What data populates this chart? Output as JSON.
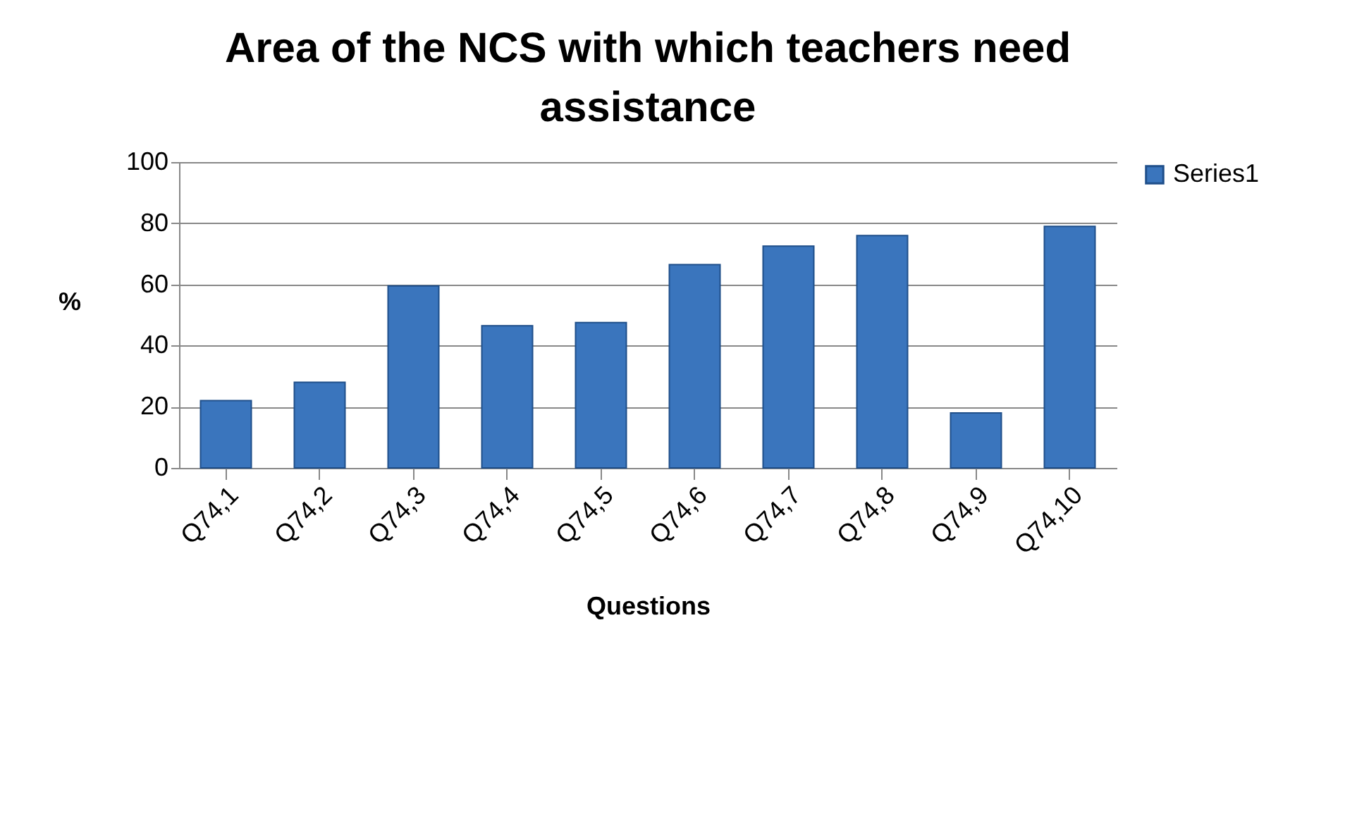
{
  "chart_data": {
    "type": "bar",
    "title": "Area of the NCS with which teachers need assistance",
    "xlabel": "Questions",
    "ylabel": "%",
    "categories": [
      "Q74,1",
      "Q74,2",
      "Q74,3",
      "Q74,4",
      "Q74,5",
      "Q74,6",
      "Q74,7",
      "Q74,8",
      "Q74,9",
      "Q74,10"
    ],
    "series": [
      {
        "name": "Series1",
        "color": "#3a75bd",
        "values": [
          22,
          28,
          59.5,
          46.5,
          47.5,
          66.5,
          72.5,
          76,
          18,
          79
        ]
      }
    ],
    "ylim": [
      0,
      100
    ],
    "yticks": [
      0,
      20,
      40,
      60,
      80,
      100
    ],
    "grid": "y",
    "legend": "right"
  }
}
